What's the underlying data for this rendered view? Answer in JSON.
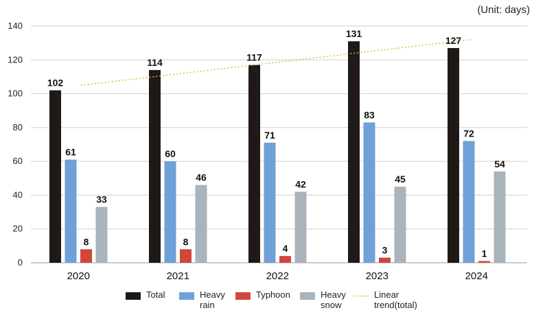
{
  "unit_label": "(Unit: days)",
  "colors": {
    "total": "#1f1a17",
    "heavy_rain": "#6fa0d8",
    "typhoon": "#d0463c",
    "heavy_snow": "#a9b4bd",
    "trend": "#d9b84a",
    "grid": "#cfcfcf"
  },
  "legend": [
    {
      "key": "total",
      "label": "Total"
    },
    {
      "key": "heavy_rain",
      "label": "Heavy\nrain"
    },
    {
      "key": "typhoon",
      "label": "Typhoon"
    },
    {
      "key": "heavy_snow",
      "label": "Heavy\nsnow"
    },
    {
      "key": "trend",
      "label": "Linear\ntrend(total)"
    }
  ],
  "chart_data": {
    "type": "bar",
    "categories": [
      "2020",
      "2021",
      "2022",
      "2023",
      "2024"
    ],
    "series": [
      {
        "key": "total",
        "name": "Total",
        "values": [
          102,
          114,
          117,
          131,
          127
        ]
      },
      {
        "key": "heavy_rain",
        "name": "Heavy rain",
        "values": [
          61,
          60,
          71,
          83,
          72
        ]
      },
      {
        "key": "typhoon",
        "name": "Typhoon",
        "values": [
          8,
          8,
          4,
          3,
          1
        ]
      },
      {
        "key": "heavy_snow",
        "name": "Heavy snow",
        "values": [
          33,
          46,
          42,
          45,
          54
        ]
      }
    ],
    "trend": {
      "name": "Linear trend(total)",
      "start": 105,
      "end": 132
    },
    "ylim": [
      0,
      140
    ],
    "yticks": [
      0,
      20,
      40,
      60,
      80,
      100,
      120,
      140
    ],
    "grid": true,
    "legend_position": "bottom"
  }
}
